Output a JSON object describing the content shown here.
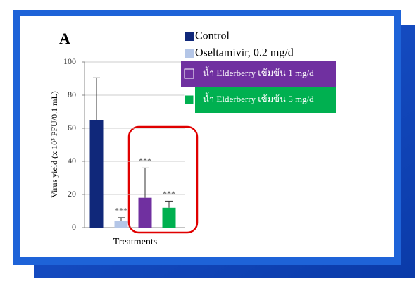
{
  "chart_data": {
    "type": "bar",
    "panel_label": "A",
    "x_label": "Treatments",
    "y_label": "Virus yield (x 10³ PFU/0.1 mL)",
    "categories": [
      null
    ],
    "series": [
      {
        "name": "Control",
        "color": "#10287a",
        "values": [
          65
        ],
        "errors": [
          25.5
        ]
      },
      {
        "name": "Oseltamivir, 0.2 mg/d",
        "color": "#b4c6e7",
        "values": [
          4
        ],
        "errors": [
          2
        ],
        "annotation": "***"
      },
      {
        "name": "น้ำ Elderberry เข้มข้น 1 mg/d",
        "color": "#7030a0",
        "values": [
          18
        ],
        "errors": [
          18
        ],
        "annotation": "***"
      },
      {
        "name": "น้ำ Elderberry เข้มข้น 5 mg/d",
        "color": "#00b050",
        "values": [
          12
        ],
        "errors": [
          4
        ],
        "annotation": "***"
      }
    ],
    "ylim": [
      0,
      100
    ],
    "yticks": [
      0,
      20,
      40,
      60,
      80,
      100
    ],
    "grid": true
  }
}
